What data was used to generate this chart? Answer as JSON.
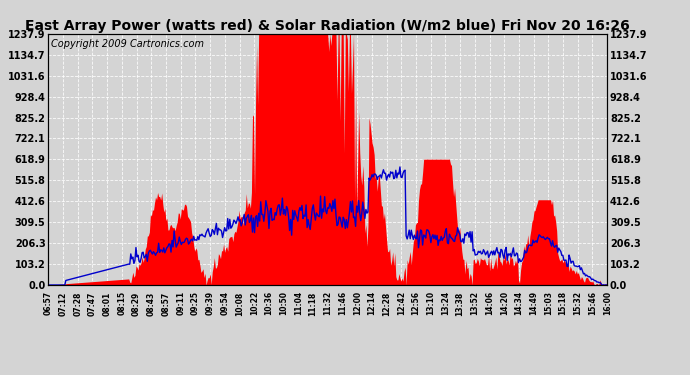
{
  "title": "East Array Power (watts red) & Solar Radiation (W/m2 blue) Fri Nov 20 16:26",
  "copyright": "Copyright 2009 Cartronics.com",
  "y_ticks": [
    0.0,
    103.2,
    206.3,
    309.5,
    412.6,
    515.8,
    618.9,
    722.1,
    825.2,
    928.4,
    1031.6,
    1134.7,
    1237.9
  ],
  "x_labels": [
    "06:57",
    "07:12",
    "07:28",
    "07:47",
    "08:01",
    "08:15",
    "08:29",
    "08:43",
    "08:57",
    "09:11",
    "09:25",
    "09:39",
    "09:54",
    "10:08",
    "10:22",
    "10:36",
    "10:50",
    "11:04",
    "11:18",
    "11:32",
    "11:46",
    "12:00",
    "12:14",
    "12:28",
    "12:42",
    "12:56",
    "13:10",
    "13:24",
    "13:38",
    "13:52",
    "14:06",
    "14:20",
    "14:34",
    "14:49",
    "15:03",
    "15:18",
    "15:32",
    "15:46",
    "16:00"
  ],
  "ymax": 1237.9,
  "background_color": "#d4d4d4",
  "red_color": "#ff0000",
  "blue_color": "#0000cc",
  "title_fontsize": 10,
  "copyright_fontsize": 7
}
